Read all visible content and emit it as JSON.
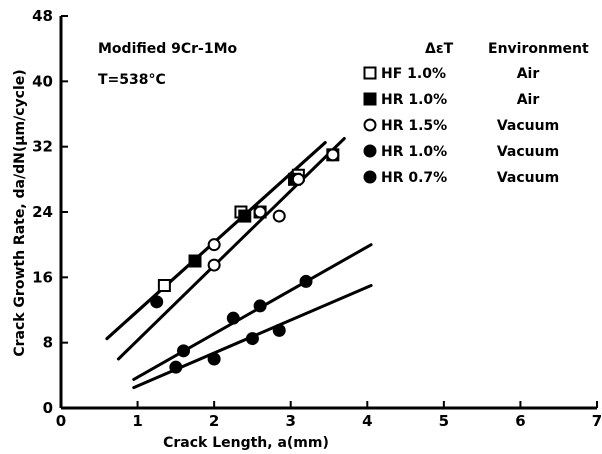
{
  "chart_data": {
    "type": "scatter",
    "title": "",
    "annotations": {
      "material": "Modified 9Cr-1Mo",
      "temperature": "T=538°C"
    },
    "xlabel": "Crack Length, a(mm)",
    "ylabel": "Crack Growth Rate, da/dN(µm/cycle)",
    "xlim": [
      0,
      7
    ],
    "ylim": [
      0,
      48
    ],
    "xticks": [
      0,
      1,
      2,
      3,
      4,
      5,
      6,
      7
    ],
    "yticks": [
      0,
      8,
      16,
      24,
      32,
      40,
      48
    ],
    "grid": false,
    "legend": {
      "placement": "top-right",
      "header_strain": "ΔεT",
      "header_environment": "Environment"
    },
    "series": [
      {
        "name": "HF 1.0%",
        "environment": "Air",
        "marker": "open-square",
        "x": [
          1.35,
          1.75,
          2.35,
          2.6,
          3.1,
          3.55
        ],
        "y": [
          15,
          18,
          24,
          24,
          28.5,
          31
        ],
        "fit": {
          "x": [
            0.6,
            3.45
          ],
          "y": [
            8.5,
            32.5
          ]
        }
      },
      {
        "name": "HR 1.0%",
        "environment": "Air",
        "marker": "filled-square",
        "x": [
          1.75,
          2.4,
          3.05
        ],
        "y": [
          18,
          23.5,
          28
        ],
        "fit": {
          "x": [
            0.6,
            3.45
          ],
          "y": [
            8.5,
            32.5
          ]
        }
      },
      {
        "name": "HR 1.5%",
        "environment": "Vacuum",
        "marker": "open-circle",
        "x": [
          2.0,
          2.0,
          2.6,
          2.85,
          3.1,
          3.55
        ],
        "y": [
          17.5,
          20,
          24,
          23.5,
          28,
          31
        ],
        "fit": {
          "x": [
            0.75,
            3.7
          ],
          "y": [
            6,
            33
          ]
        }
      },
      {
        "name": "HR 1.0%",
        "environment": "Vacuum",
        "marker": "filled-circle",
        "x": [
          1.25,
          1.6,
          2.25,
          2.6,
          3.2
        ],
        "y": [
          13,
          7,
          11,
          12.5,
          15.5
        ],
        "fit": {
          "x": [
            0.95,
            4.05
          ],
          "y": [
            3.5,
            20
          ]
        }
      },
      {
        "name": "HR 0.7%",
        "environment": "Vacuum",
        "marker": "filled-circle",
        "x": [
          1.5,
          2.0,
          2.5,
          2.85
        ],
        "y": [
          5,
          6,
          8.5,
          9.5
        ],
        "fit": {
          "x": [
            0.95,
            4.05
          ],
          "y": [
            2.5,
            15
          ]
        }
      }
    ]
  }
}
